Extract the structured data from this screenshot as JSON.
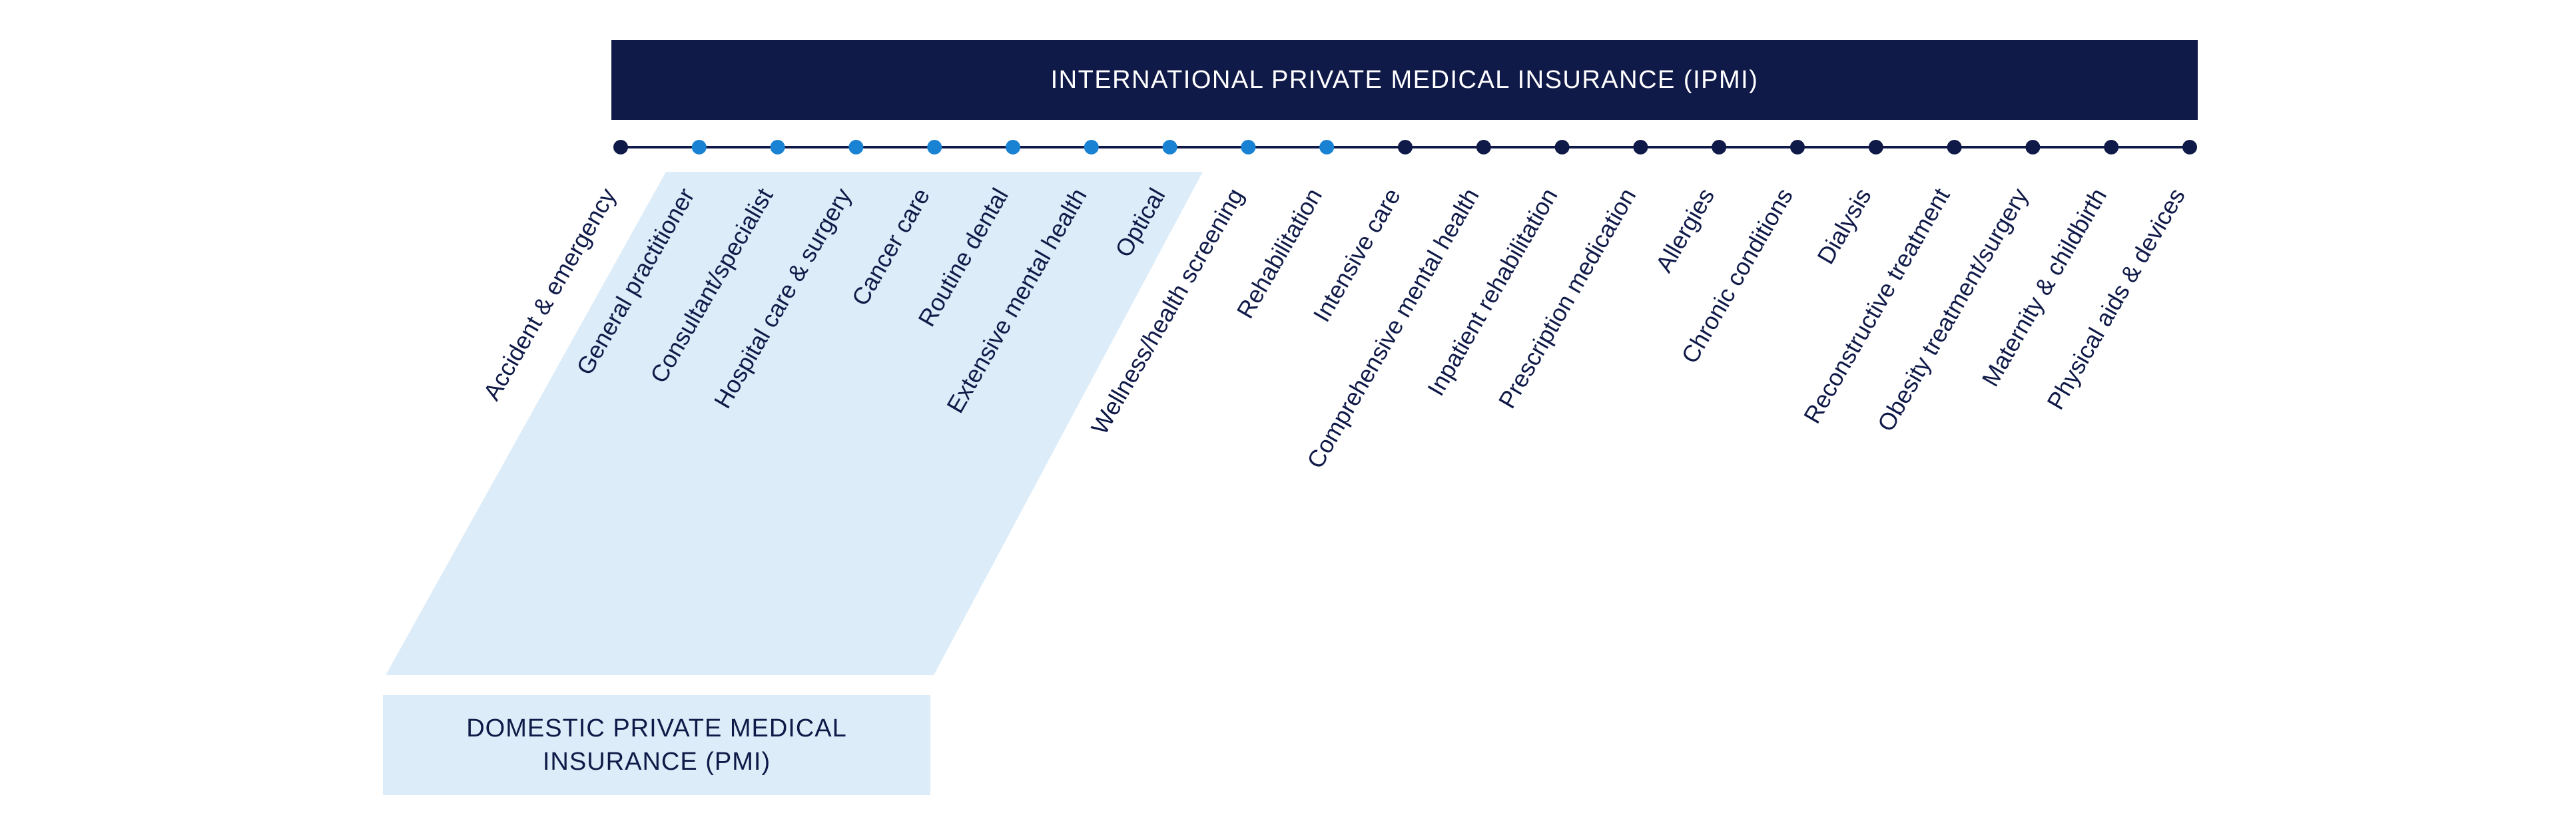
{
  "ipmi_title": "INTERNATIONAL PRIVATE MEDICAL INSURANCE (IPMI)",
  "pmi_title": "DOMESTIC PRIVATE MEDICAL INSURANCE (PMI)",
  "colors": {
    "navy": "#101a48",
    "blue_dot": "#1a82d2",
    "light_blue_fill": "#dcecf8"
  },
  "coverage_items": [
    {
      "label": "Accident & emergency",
      "in_pmi": false
    },
    {
      "label": "General practitioner",
      "in_pmi": true
    },
    {
      "label": "Consultant/specialist",
      "in_pmi": true
    },
    {
      "label": "Hospital care & surgery",
      "in_pmi": true
    },
    {
      "label": "Cancer care",
      "in_pmi": true
    },
    {
      "label": "Routine dental",
      "in_pmi": true
    },
    {
      "label": "Extensive mental health",
      "in_pmi": true
    },
    {
      "label": "Optical",
      "in_pmi": true
    },
    {
      "label": "Wellness/health screening",
      "in_pmi": true
    },
    {
      "label": "Rehabilitation",
      "in_pmi": true
    },
    {
      "label": "Intensive care",
      "in_pmi": false
    },
    {
      "label": "Comprehensive mental health",
      "in_pmi": false
    },
    {
      "label": "Inpatient rehabilitation",
      "in_pmi": false
    },
    {
      "label": "Prescription medication",
      "in_pmi": false
    },
    {
      "label": "Allergies",
      "in_pmi": false
    },
    {
      "label": "Chronic conditions",
      "in_pmi": false
    },
    {
      "label": "Dialysis",
      "in_pmi": false
    },
    {
      "label": "Reconstructive treatment",
      "in_pmi": false
    },
    {
      "label": "Obesity treatment/surgery",
      "in_pmi": false
    },
    {
      "label": "Maternity & childbirth",
      "in_pmi": false
    },
    {
      "label": "Physical aids & devices",
      "in_pmi": false
    }
  ]
}
